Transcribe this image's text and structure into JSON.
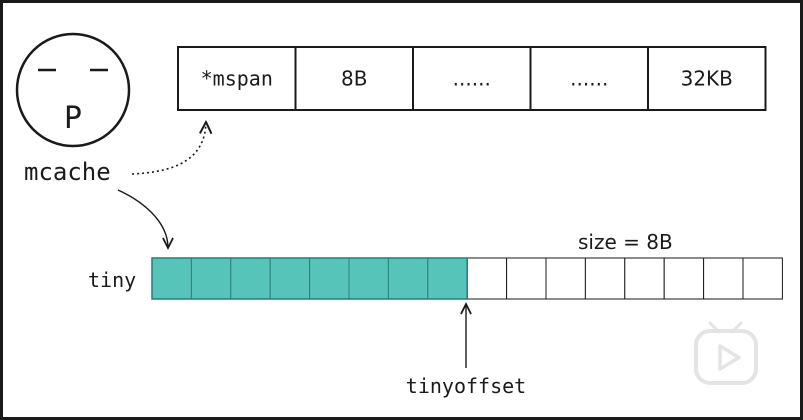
{
  "goroutine": {
    "letter": "P"
  },
  "mcache_label": "mcache",
  "span_array": {
    "cells": [
      "*mspan",
      "8B",
      "......",
      "......",
      "32KB"
    ]
  },
  "tiny_block": {
    "label": "tiny",
    "size_label": "size = 8B",
    "total_cells": 16,
    "filled_cells": 8,
    "fill_color": "#56c4b8"
  },
  "tinyoffset_label": "tinyoffset",
  "watermark": {
    "icon": "play-tv-icon"
  }
}
